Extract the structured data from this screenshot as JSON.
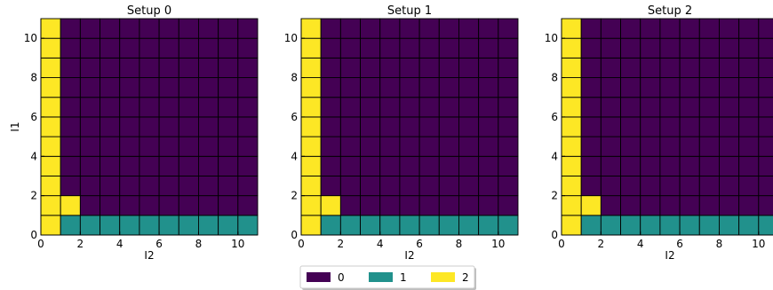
{
  "chart_data": [
    {
      "type": "heatmap",
      "title": "Setup 0",
      "xlabel": "I2",
      "ylabel": "I1",
      "xlim": [
        0,
        11
      ],
      "ylim": [
        0,
        11
      ],
      "xticks": [
        "0",
        "2",
        "4",
        "6",
        "8",
        "10"
      ],
      "yticks": [
        "0",
        "2",
        "4",
        "6",
        "8",
        "10"
      ],
      "grid_size": [
        11,
        11
      ],
      "rows": [
        [
          2,
          1,
          1,
          1,
          1,
          1,
          1,
          1,
          1,
          1,
          1
        ],
        [
          2,
          2,
          0,
          0,
          0,
          0,
          0,
          0,
          0,
          0,
          0
        ],
        [
          2,
          0,
          0,
          0,
          0,
          0,
          0,
          0,
          0,
          0,
          0
        ],
        [
          2,
          0,
          0,
          0,
          0,
          0,
          0,
          0,
          0,
          0,
          0
        ],
        [
          2,
          0,
          0,
          0,
          0,
          0,
          0,
          0,
          0,
          0,
          0
        ],
        [
          2,
          0,
          0,
          0,
          0,
          0,
          0,
          0,
          0,
          0,
          0
        ],
        [
          2,
          0,
          0,
          0,
          0,
          0,
          0,
          0,
          0,
          0,
          0
        ],
        [
          2,
          0,
          0,
          0,
          0,
          0,
          0,
          0,
          0,
          0,
          0
        ],
        [
          2,
          0,
          0,
          0,
          0,
          0,
          0,
          0,
          0,
          0,
          0
        ],
        [
          2,
          0,
          0,
          0,
          0,
          0,
          0,
          0,
          0,
          0,
          0
        ],
        [
          2,
          0,
          0,
          0,
          0,
          0,
          0,
          0,
          0,
          0,
          0
        ]
      ]
    },
    {
      "type": "heatmap",
      "title": "Setup 1",
      "xlabel": "I2",
      "ylabel": "",
      "xlim": [
        0,
        11
      ],
      "ylim": [
        0,
        11
      ],
      "xticks": [
        "0",
        "2",
        "4",
        "6",
        "8",
        "10"
      ],
      "yticks": [
        "0",
        "2",
        "4",
        "6",
        "8",
        "10"
      ],
      "grid_size": [
        11,
        11
      ],
      "rows": [
        [
          2,
          1,
          1,
          1,
          1,
          1,
          1,
          1,
          1,
          1,
          1
        ],
        [
          2,
          2,
          0,
          0,
          0,
          0,
          0,
          0,
          0,
          0,
          0
        ],
        [
          2,
          0,
          0,
          0,
          0,
          0,
          0,
          0,
          0,
          0,
          0
        ],
        [
          2,
          0,
          0,
          0,
          0,
          0,
          0,
          0,
          0,
          0,
          0
        ],
        [
          2,
          0,
          0,
          0,
          0,
          0,
          0,
          0,
          0,
          0,
          0
        ],
        [
          2,
          0,
          0,
          0,
          0,
          0,
          0,
          0,
          0,
          0,
          0
        ],
        [
          2,
          0,
          0,
          0,
          0,
          0,
          0,
          0,
          0,
          0,
          0
        ],
        [
          2,
          0,
          0,
          0,
          0,
          0,
          0,
          0,
          0,
          0,
          0
        ],
        [
          2,
          0,
          0,
          0,
          0,
          0,
          0,
          0,
          0,
          0,
          0
        ],
        [
          2,
          0,
          0,
          0,
          0,
          0,
          0,
          0,
          0,
          0,
          0
        ],
        [
          2,
          0,
          0,
          0,
          0,
          0,
          0,
          0,
          0,
          0,
          0
        ]
      ]
    },
    {
      "type": "heatmap",
      "title": "Setup 2",
      "xlabel": "I2",
      "ylabel": "",
      "xlim": [
        0,
        11
      ],
      "ylim": [
        0,
        11
      ],
      "xticks": [
        "0",
        "2",
        "4",
        "6",
        "8",
        "10"
      ],
      "yticks": [
        "0",
        "2",
        "4",
        "6",
        "8",
        "10"
      ],
      "grid_size": [
        11,
        11
      ],
      "rows": [
        [
          2,
          1,
          1,
          1,
          1,
          1,
          1,
          1,
          1,
          1,
          1
        ],
        [
          2,
          2,
          0,
          0,
          0,
          0,
          0,
          0,
          0,
          0,
          0
        ],
        [
          2,
          0,
          0,
          0,
          0,
          0,
          0,
          0,
          0,
          0,
          0
        ],
        [
          2,
          0,
          0,
          0,
          0,
          0,
          0,
          0,
          0,
          0,
          0
        ],
        [
          2,
          0,
          0,
          0,
          0,
          0,
          0,
          0,
          0,
          0,
          0
        ],
        [
          2,
          0,
          0,
          0,
          0,
          0,
          0,
          0,
          0,
          0,
          0
        ],
        [
          2,
          0,
          0,
          0,
          0,
          0,
          0,
          0,
          0,
          0,
          0
        ],
        [
          2,
          0,
          0,
          0,
          0,
          0,
          0,
          0,
          0,
          0,
          0
        ],
        [
          2,
          0,
          0,
          0,
          0,
          0,
          0,
          0,
          0,
          0,
          0
        ],
        [
          2,
          0,
          0,
          0,
          0,
          0,
          0,
          0,
          0,
          0,
          0
        ],
        [
          2,
          0,
          0,
          0,
          0,
          0,
          0,
          0,
          0,
          0,
          0
        ]
      ]
    }
  ],
  "legend": {
    "placement": "bottom-center",
    "items": [
      {
        "label": "0",
        "value": 0
      },
      {
        "label": "1",
        "value": 1
      },
      {
        "label": "2",
        "value": 2
      }
    ]
  },
  "colors": {
    "0": "#440154",
    "1": "#21918c",
    "2": "#fde725",
    "cell_border": "#000000"
  }
}
